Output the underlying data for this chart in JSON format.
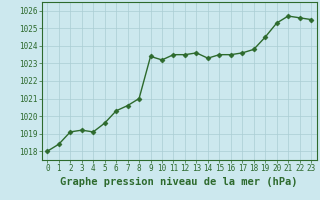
{
  "x": [
    0,
    1,
    2,
    3,
    4,
    5,
    6,
    7,
    8,
    9,
    10,
    11,
    12,
    13,
    14,
    15,
    16,
    17,
    18,
    19,
    20,
    21,
    22,
    23
  ],
  "y": [
    1018.0,
    1018.4,
    1019.1,
    1019.2,
    1019.1,
    1019.6,
    1020.3,
    1020.6,
    1021.0,
    1023.4,
    1023.2,
    1023.5,
    1023.5,
    1023.6,
    1023.3,
    1023.5,
    1023.5,
    1023.6,
    1023.8,
    1024.5,
    1025.3,
    1025.7,
    1025.6,
    1025.5
  ],
  "line_color": "#2d6a2d",
  "marker": "D",
  "marker_size": 2.5,
  "linewidth": 1.0,
  "xlabel": "Graphe pression niveau de la mer (hPa)",
  "xlabel_fontsize": 7.5,
  "xlabel_color": "#2d6a2d",
  "ylim": [
    1017.5,
    1026.5
  ],
  "yticks": [
    1018,
    1019,
    1020,
    1021,
    1022,
    1023,
    1024,
    1025,
    1026
  ],
  "xtick_labels": [
    "0",
    "1",
    "2",
    "3",
    "4",
    "5",
    "6",
    "7",
    "8",
    "9",
    "10",
    "11",
    "12",
    "13",
    "14",
    "15",
    "16",
    "17",
    "18",
    "19",
    "20",
    "21",
    "22",
    "23"
  ],
  "background_color": "#cce8ee",
  "grid_color": "#aacdd4",
  "tick_fontsize": 5.5,
  "tick_color": "#2d6a2d",
  "spine_color": "#2d6a2d",
  "bottom_bar_color": "#2d6a2d"
}
